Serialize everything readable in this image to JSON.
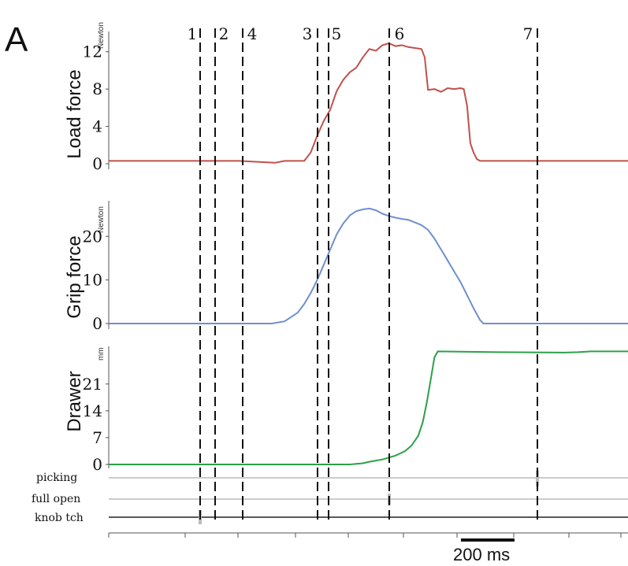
{
  "figure": {
    "panel_label": "A",
    "scale_bar_label": "200 ms",
    "event_labels": [
      "1",
      "2",
      "4",
      "3",
      "5",
      "6",
      "7"
    ]
  },
  "chart_data": [
    {
      "type": "line",
      "ylabel": "Load force",
      "unit": "Newton",
      "yticks": [
        0,
        4,
        8,
        12
      ],
      "ylim": [
        0,
        14
      ],
      "color": "#c0504d",
      "series": [
        {
          "x": [
            0,
            150,
            200,
            255,
            270,
            300,
            310,
            320,
            330,
            340,
            350,
            360,
            370,
            380,
            390,
            400,
            410,
            420,
            430,
            440,
            450,
            460,
            470,
            480,
            485,
            490,
            500,
            510,
            520,
            530,
            540,
            545,
            550,
            555,
            560,
            565,
            570,
            580,
            600,
            700,
            797
          ],
          "values": [
            0.3,
            0.3,
            0.3,
            0.1,
            0.3,
            0.3,
            1.2,
            3.0,
            4.6,
            5.8,
            7.8,
            9.0,
            9.8,
            10.3,
            11.4,
            12.3,
            12.1,
            12.7,
            12.9,
            12.6,
            12.7,
            12.5,
            12.4,
            12.3,
            11.4,
            7.9,
            8.0,
            7.7,
            8.1,
            8.0,
            8.1,
            8.0,
            6.2,
            2.2,
            1.2,
            0.5,
            0.3,
            0.3,
            0.3,
            0.3,
            0.3
          ]
        }
      ]
    },
    {
      "type": "line",
      "ylabel": "Grip force",
      "unit": "Newton",
      "yticks": [
        0,
        10,
        20
      ],
      "ylim": [
        0,
        28
      ],
      "color": "#6f8fcf",
      "series": [
        {
          "x": [
            0,
            200,
            250,
            270,
            290,
            300,
            310,
            320,
            330,
            340,
            350,
            360,
            370,
            380,
            390,
            400,
            410,
            420,
            430,
            440,
            450,
            460,
            470,
            480,
            490,
            500,
            510,
            520,
            530,
            540,
            550,
            560,
            570,
            575,
            600,
            700,
            797
          ],
          "values": [
            0,
            0,
            0,
            0.5,
            2.5,
            4.5,
            7,
            10,
            13.5,
            17,
            20.5,
            23,
            24.8,
            25.8,
            26.2,
            26.4,
            26.0,
            25.2,
            24.7,
            24.3,
            24.0,
            23.8,
            23.2,
            22.6,
            21.5,
            19.5,
            17,
            14.5,
            12,
            9.5,
            6.5,
            3.5,
            0.8,
            0,
            0,
            0,
            0
          ]
        }
      ]
    },
    {
      "type": "line",
      "ylabel": "Drawer",
      "unit": "mm",
      "yticks": [
        0,
        7,
        14,
        21
      ],
      "ylim": [
        0,
        30
      ],
      "color": "#2ca048",
      "series": [
        {
          "x": [
            0,
            200,
            300,
            370,
            390,
            400,
            410,
            420,
            440,
            455,
            465,
            475,
            482,
            488,
            494,
            500,
            505,
            600,
            700,
            720,
            740,
            797
          ],
          "values": [
            0,
            0,
            0,
            0,
            0.3,
            0.7,
            1,
            1.3,
            2.3,
            3.5,
            5,
            7.5,
            11,
            16,
            22,
            28,
            29.5,
            29.3,
            29.2,
            29.3,
            29.5,
            29.5
          ]
        }
      ]
    }
  ],
  "event_channels": [
    "picking",
    "full open",
    "knob tch"
  ]
}
